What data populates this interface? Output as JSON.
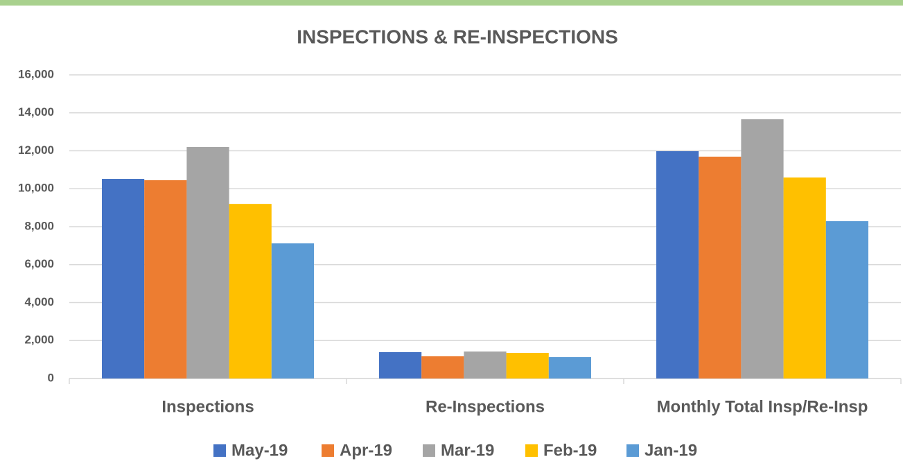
{
  "chart_data": {
    "type": "bar",
    "title": "INSPECTIONS & RE-INSPECTIONS",
    "categories": [
      "Inspections",
      "Re-Inspections",
      "Monthly Total Insp/Re-Insp"
    ],
    "series": [
      {
        "name": "May-19",
        "color": "#4472c4",
        "values": [
          10520,
          1390,
          11980
        ]
      },
      {
        "name": "Apr-19",
        "color": "#ed7d31",
        "values": [
          10450,
          1170,
          11690
        ]
      },
      {
        "name": "Mar-19",
        "color": "#a5a5a5",
        "values": [
          12200,
          1420,
          13660
        ]
      },
      {
        "name": "Feb-19",
        "color": "#ffc000",
        "values": [
          9200,
          1350,
          10590
        ]
      },
      {
        "name": "Jan-19",
        "color": "#5b9bd5",
        "values": [
          7120,
          1130,
          8290
        ]
      }
    ],
    "ylim": [
      0,
      16000
    ],
    "yticks": [
      0,
      {
        "value": 2000,
        "label": "2,000"
      },
      {
        "value": 4000,
        "label": "4,000"
      },
      {
        "value": 6000,
        "label": "6,000"
      },
      {
        "value": 8000,
        "label": "8,000"
      },
      {
        "value": 10000,
        "label": "10,000"
      },
      {
        "value": 12000,
        "label": "12,000"
      },
      {
        "value": 14000,
        "label": "14,000"
      },
      {
        "value": 16000,
        "label": "16,000"
      }
    ],
    "grid": true,
    "legend": "bottom"
  }
}
